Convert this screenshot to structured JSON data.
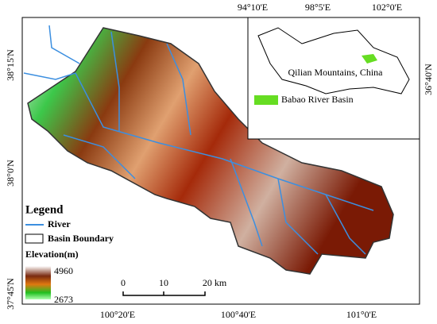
{
  "map": {
    "top_labels": [
      "94°10'E",
      "98°5'E",
      "102°0'E"
    ],
    "left_labels": [
      "38°15'N",
      "38°0'N",
      "37°45'N"
    ],
    "right_labels": [
      "36°40'N"
    ],
    "bottom_labels": [
      "100°20'E",
      "100°40'E",
      "101°0'E"
    ],
    "inset": {
      "region_label": "Qilian Mountains, China",
      "legend_label": "Babao River Basin"
    },
    "legend": {
      "title": "Legend",
      "river": "River",
      "boundary": "Basin Boundary",
      "elevation_title": "Elevation(m)",
      "elevation_max": "4960",
      "elevation_min": "2673"
    },
    "scale_bar": {
      "labels": [
        "0",
        "10",
        "20 km"
      ]
    }
  }
}
